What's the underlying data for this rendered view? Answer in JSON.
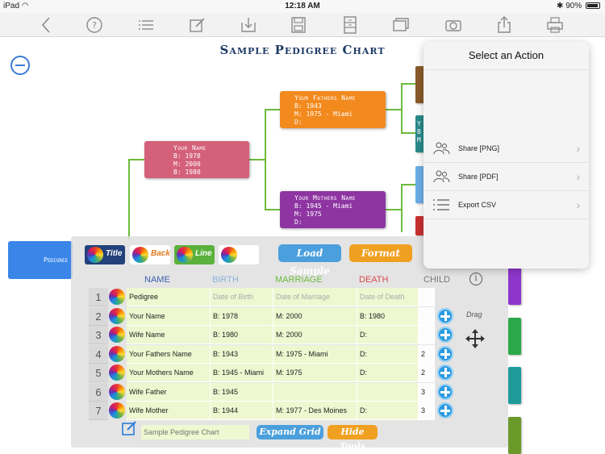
{
  "status_bar": {
    "device": "iPad",
    "time": "12:18 AM",
    "battery": "90%",
    "battery_level": 0.9
  },
  "toolbar": {
    "icons": [
      "back-icon",
      "help-icon",
      "list-icon",
      "edit-icon",
      "download-icon",
      "save-icon",
      "cabinet-icon",
      "windows-icon",
      "camera-icon",
      "share-icon",
      "print-icon"
    ]
  },
  "chart": {
    "title": "Sample Pedigree Chart",
    "root": {
      "name": "Your Name",
      "lines": [
        "B: 1978",
        "M: 2000",
        "B: 1980"
      ],
      "color": "#d4607a"
    },
    "father": {
      "name": "Your Fathers Name",
      "lines": [
        "B: 1943",
        "M: 1975 - Miami",
        "D:"
      ],
      "color": "#f28a1e"
    },
    "mother": {
      "name": "Your Mothers Name",
      "lines": [
        "B: 1945 - Miami",
        "M: 1975",
        "D:"
      ],
      "color": "#8e35a2"
    },
    "pedigree_label": "Pedigree",
    "right_column": [
      {
        "color": "#8a5a2a",
        "text": ""
      },
      {
        "color": "#2a8a8a",
        "text": "Y B M"
      },
      {
        "color": "#6aaee5",
        "text": ""
      },
      {
        "color": "#c93030",
        "text": ""
      },
      {
        "color": "#8e35cc",
        "text": ""
      },
      {
        "color": "#2aa84a",
        "text": ""
      },
      {
        "color": "#1e9a9a",
        "text": ""
      },
      {
        "color": "#6a9a2a",
        "text": ""
      }
    ]
  },
  "tools": {
    "buttons": [
      {
        "label": "Title",
        "bg": "#23417a",
        "fg": "#ffffff"
      },
      {
        "label": "Back",
        "bg": "#ffffff",
        "fg": "#e07a1a"
      },
      {
        "label": "Line",
        "bg": "#5bb13c",
        "fg": "#ffffff"
      },
      {
        "label": "",
        "bg": "#ffffff",
        "fg": "#333333"
      }
    ],
    "load_sample": "Load Sample",
    "format": "Format",
    "expand_grid": "Expand Grid",
    "hide_tools": "Hide Tools",
    "chart_name_placeholder": "Sample Pedigree Chart",
    "drag_label": "Drag"
  },
  "grid": {
    "headers": {
      "name": "NAME",
      "birth": "BIRTH",
      "marriage": "MARRIAGE",
      "death": "DEATH",
      "child": "CHILD",
      "info": "i"
    },
    "rows": [
      {
        "n": "1",
        "name": "Pedigree",
        "birth": "Date of Birth",
        "marriage": "Date of Marriage",
        "death": "Date of Death",
        "child": "",
        "placeholder": true
      },
      {
        "n": "2",
        "name": "Your Name",
        "birth": "B: 1978",
        "marriage": "M: 2000",
        "death": "B: 1980",
        "child": ""
      },
      {
        "n": "3",
        "name": "Wife Name",
        "birth": "B: 1980",
        "marriage": "M: 2000",
        "death": "D:",
        "child": ""
      },
      {
        "n": "4",
        "name": "Your Fathers Name",
        "birth": "B: 1943",
        "marriage": "M: 1975 - Miami",
        "death": "D:",
        "child": "2"
      },
      {
        "n": "5",
        "name": "Your Mothers Name",
        "birth": "B: 1945 - Miami",
        "marriage": "M: 1975",
        "death": "D:",
        "child": "2"
      },
      {
        "n": "6",
        "name": "Wife Father",
        "birth": "B: 1945",
        "marriage": "",
        "death": "",
        "child": "3"
      },
      {
        "n": "7",
        "name": "Wife Mother",
        "birth": "B: 1944",
        "marriage": "M: 1977 - Des Moines",
        "death": "D:",
        "child": "3"
      }
    ]
  },
  "popover": {
    "title": "Select an Action",
    "items": [
      {
        "label": "Share [PNG]",
        "icon": "people-icon"
      },
      {
        "label": "Share [PDF]",
        "icon": "people-icon"
      },
      {
        "label": "Export CSV",
        "icon": "list-icon"
      }
    ]
  }
}
